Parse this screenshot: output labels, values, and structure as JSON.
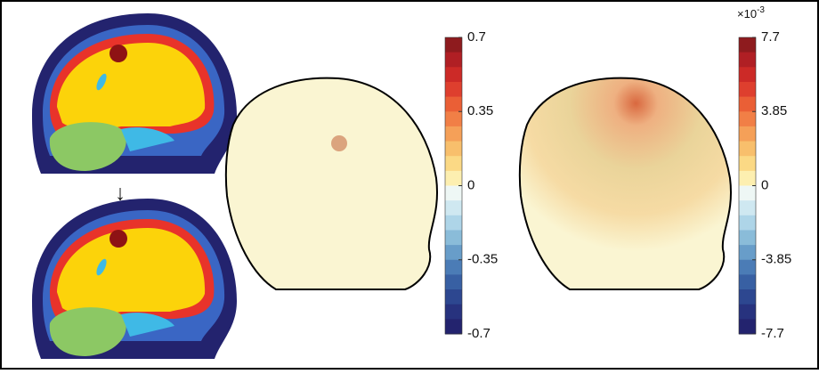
{
  "colormap": [
    "#8e1b1e",
    "#b01f24",
    "#cc2a27",
    "#de3f2e",
    "#ea5f36",
    "#f17f46",
    "#f5a058",
    "#f8bf6c",
    "#fbd985",
    "#fdefb0",
    "#eef7f5",
    "#cfe8f1",
    "#aed5e8",
    "#8abcd9",
    "#689dc9",
    "#4b7cb6",
    "#3860a3",
    "#2d4790",
    "#27327e",
    "#23236e"
  ],
  "colorbars": [
    {
      "lim": [
        -0.7,
        0.7
      ],
      "ticks": [
        0.7,
        0.35,
        0,
        -0.35,
        -0.7
      ]
    },
    {
      "lim": [
        -7.7,
        7.7
      ],
      "ticks": [
        7.7,
        3.85,
        0,
        -3.85,
        -7.7
      ],
      "multiplier": {
        "base": "×10",
        "exponent": "-3"
      }
    }
  ],
  "arrow": "↓"
}
